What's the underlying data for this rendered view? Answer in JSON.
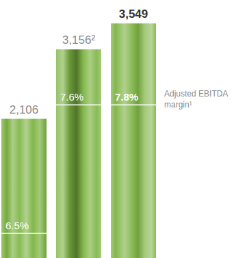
{
  "chart_data": {
    "type": "bar",
    "categories": [
      null,
      null,
      null
    ],
    "values": [
      2106,
      3156,
      3549
    ],
    "value_labels": [
      "2,106",
      "3,156²",
      "3,549"
    ],
    "data_labels": true,
    "color": "#7cb342",
    "ylim": [
      0,
      3800
    ],
    "tick_labels": false,
    "grid": false,
    "margin_values": [
      6.5,
      7.6,
      7.8
    ],
    "margin_labels": [
      "6.5%",
      "7.6%",
      "7.8%"
    ],
    "annotation": "Adjusted EBITDA margin¹"
  }
}
